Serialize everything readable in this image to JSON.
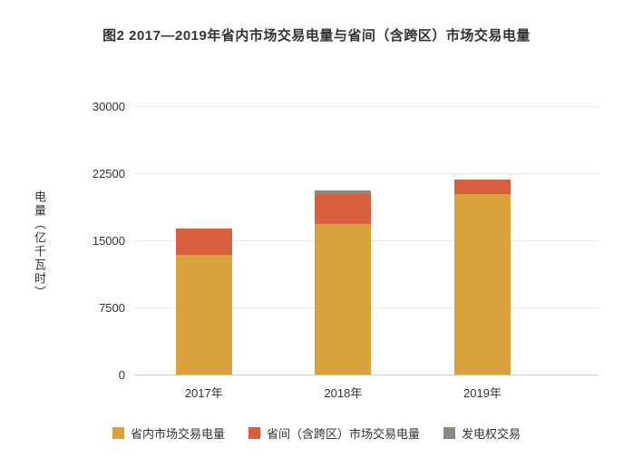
{
  "title": "图2 2017—2019年省内市场交易电量与省间（含跨区）市场交易电量",
  "chart_data": {
    "type": "bar",
    "stacked": true,
    "title": "图2 2017—2019年省内市场交易电量与省间（含跨区）市场交易电量",
    "categories": [
      "2017年",
      "2018年",
      "2019年"
    ],
    "series": [
      {
        "name": "省内市场交易电量",
        "color": "#D9A23C",
        "values": [
          13400,
          16800,
          20200
        ]
      },
      {
        "name": "省间（含跨区）市场交易电量",
        "color": "#D8603F",
        "values": [
          2900,
          3400,
          1600
        ]
      },
      {
        "name": "发电权交易",
        "color": "#8F887F",
        "values": [
          0,
          400,
          0
        ]
      }
    ],
    "xlabel": "",
    "ylabel": "电量（亿千瓦时）",
    "yticks": [
      0,
      7500,
      15000,
      22500,
      30000
    ],
    "ylim": [
      0,
      30000
    ],
    "grid": true,
    "legend_position": "bottom",
    "background_color": "#ffffff"
  }
}
